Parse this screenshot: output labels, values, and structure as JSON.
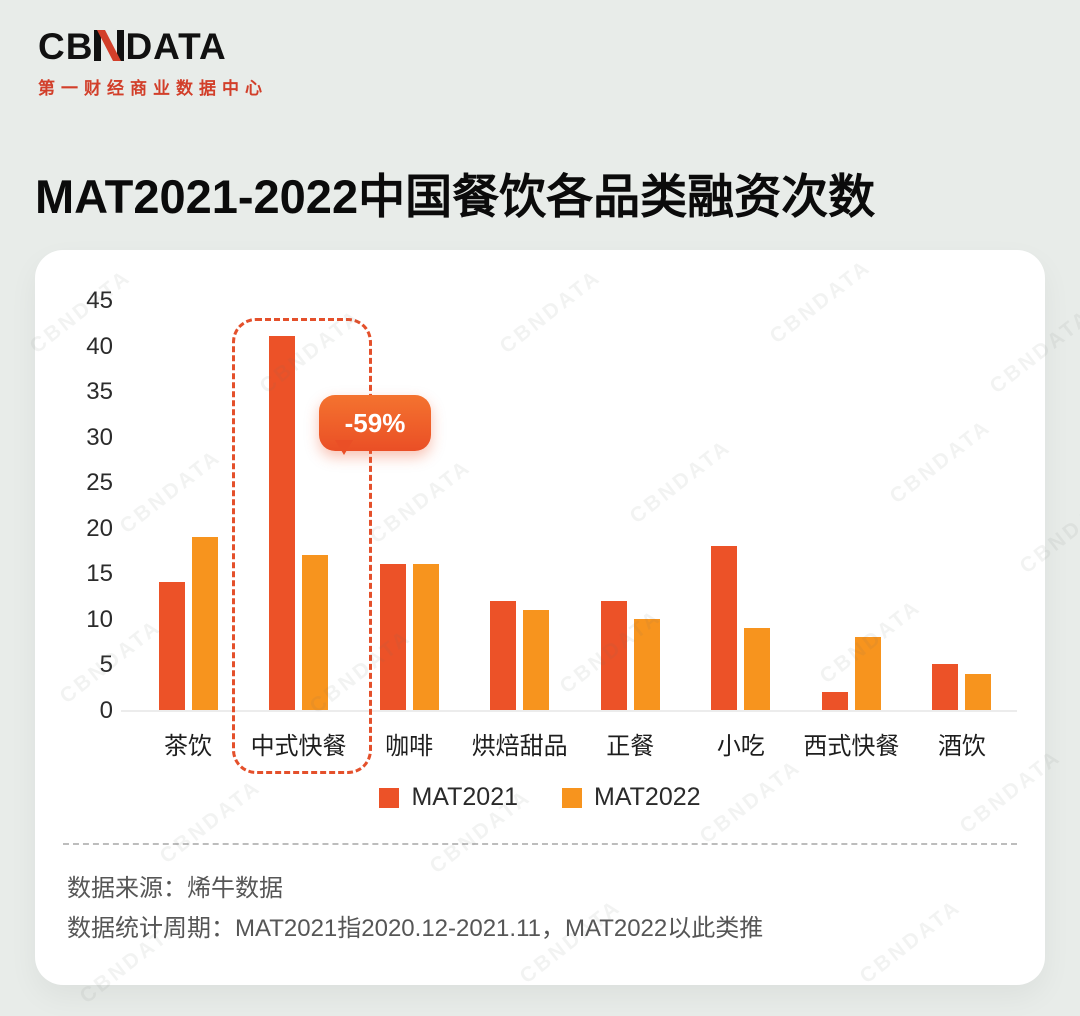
{
  "logo": {
    "cb": "CB",
    "data": "DATA",
    "subtitle": "第一财经商业数据中心"
  },
  "title": "MAT2021-2022中国餐饮各品类融资次数",
  "chart_data": {
    "type": "bar",
    "categories": [
      "茶饮",
      "中式快餐",
      "咖啡",
      "烘焙甜品",
      "正餐",
      "小吃",
      "西式快餐",
      "酒饮"
    ],
    "series": [
      {
        "name": "MAT2021",
        "color": "#EC5228",
        "values": [
          14,
          41,
          16,
          12,
          12,
          18,
          2,
          5
        ]
      },
      {
        "name": "MAT2022",
        "color": "#F7941E",
        "values": [
          19,
          17,
          16,
          11,
          10,
          9,
          8,
          4
        ]
      }
    ],
    "ylim": [
      0,
      45
    ],
    "yticks": [
      0,
      5,
      10,
      15,
      20,
      25,
      30,
      35,
      40,
      45
    ],
    "grid": false,
    "legend_position": "bottom",
    "annotation": {
      "label": "-59%",
      "target_category": "中式快餐",
      "target_category_index": 1
    }
  },
  "footer": {
    "source": "数据来源：烯牛数据",
    "period": "数据统计周期：MAT2021指2020.12-2021.11，MAT2022以此类推"
  },
  "watermark": "CBNDATA",
  "colors": {
    "mat2021": "#EC5228",
    "mat2022": "#F7941E",
    "background": "#E8ECE9",
    "accent": "#E4502B",
    "logo_red": "#D23F2A"
  }
}
